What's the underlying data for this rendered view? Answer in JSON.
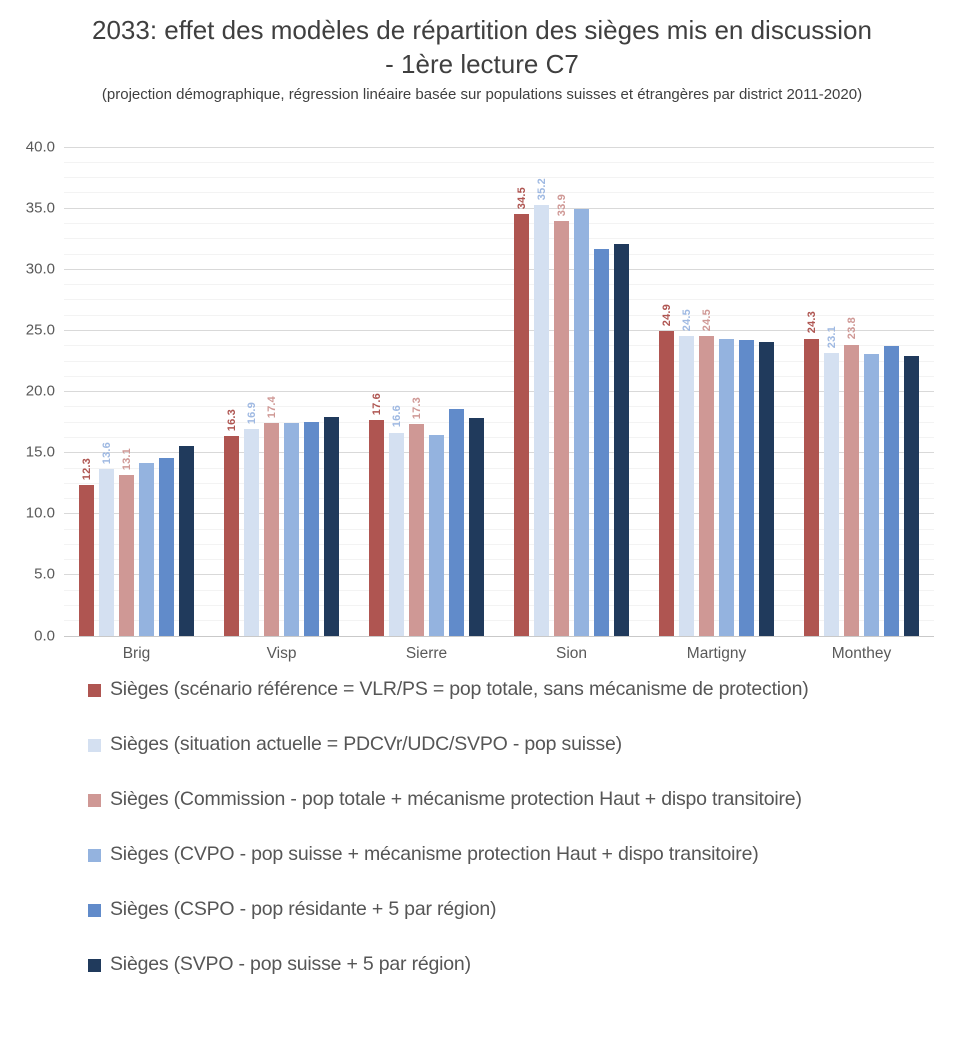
{
  "chart_data": {
    "type": "bar",
    "title": "2033: effet des modèles de répartition des sièges mis en discussion - 1ère lecture C7",
    "subtitle": "(projection démographique, régression linéaire basée sur populations suisses et étrangères par district 2011-2020)",
    "categories": [
      "Brig",
      "Visp",
      "Sierre",
      "Sion",
      "Martigny",
      "Monthey"
    ],
    "series": [
      {
        "name": "Sièges (scénario référence = VLR/PS = pop totale, sans mécanisme de protection)",
        "color": "#af5551",
        "show_labels": true,
        "label_color": "#af5551",
        "values": [
          12.3,
          16.3,
          17.6,
          34.5,
          24.9,
          24.3
        ]
      },
      {
        "name": "Sièges (situation actuelle = PDCVr/UDC/SVPO - pop suisse)",
        "color": "#d4e0f1",
        "show_labels": true,
        "label_color": "#9fb9e2",
        "values": [
          13.6,
          16.9,
          16.6,
          35.2,
          24.5,
          23.1
        ]
      },
      {
        "name": "Sièges (Commission - pop totale + mécanisme protection Haut + dispo transitoire)",
        "color": "#cf9895",
        "show_labels": true,
        "label_color": "#cf9895",
        "values": [
          13.1,
          17.4,
          17.3,
          33.9,
          24.5,
          23.8
        ]
      },
      {
        "name": "Sièges (CVPO - pop suisse + mécanisme protection Haut + dispo transitoire)",
        "color": "#94b3df",
        "show_labels": false,
        "values": [
          14.1,
          17.4,
          16.4,
          34.9,
          24.3,
          23.0
        ]
      },
      {
        "name": "Sièges (CSPO - pop résidante + 5 par région)",
        "color": "#618bca",
        "show_labels": false,
        "values": [
          14.5,
          17.5,
          18.5,
          31.6,
          24.2,
          23.7
        ]
      },
      {
        "name": "Sièges (SVPO - pop suisse + 5 par région)",
        "color": "#203a5c",
        "show_labels": false,
        "values": [
          15.5,
          17.9,
          17.8,
          32.0,
          24.0,
          22.9
        ]
      }
    ],
    "ylim": [
      0,
      40
    ],
    "y_ticks": [
      "40.0",
      "35.0",
      "30.0",
      "25.0",
      "20.0",
      "15.0",
      "10.0",
      "5.0",
      "0.0"
    ],
    "y_major_unit": 5,
    "y_minor_unit": 1.25,
    "grid": true,
    "legend_position": "bottom"
  }
}
